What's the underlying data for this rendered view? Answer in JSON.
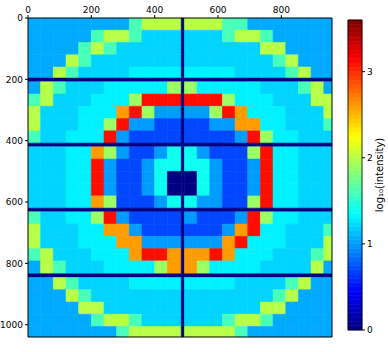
{
  "chart_data": {
    "type": "heatmap",
    "xlim": [
      0,
      960
    ],
    "ylim": [
      1040,
      0
    ],
    "xticks": [
      0,
      200,
      400,
      600,
      800
    ],
    "yticks": [
      0,
      200,
      400,
      600,
      800,
      1000
    ],
    "x_edges": [
      0,
      40,
      80,
      120,
      160,
      200,
      240,
      280,
      320,
      360,
      400,
      440,
      484,
      494,
      534,
      574,
      614,
      654,
      694,
      734,
      774,
      814,
      854,
      894,
      934,
      960
    ],
    "y_edges": [
      0,
      40,
      80,
      120,
      160,
      196,
      208,
      248,
      288,
      328,
      368,
      408,
      420,
      460,
      500,
      540,
      580,
      620,
      632,
      672,
      712,
      752,
      792,
      834,
      846,
      886,
      926,
      966,
      1006,
      1040
    ],
    "cells": [
      [
        1.05,
        1.05,
        1.05,
        1.05,
        1.05,
        1.05,
        1.05,
        1.05,
        1.6,
        2.0,
        2.0,
        2.0,
        0,
        2.0,
        2.0,
        2.0,
        1.6,
        1.6,
        1.05,
        1.05,
        1.05,
        1.05,
        1.05,
        1.05,
        1.05
      ],
      [
        1.05,
        1.05,
        1.05,
        1.05,
        1.05,
        1.6,
        2.0,
        2.0,
        1.6,
        1.2,
        1.2,
        1.2,
        0,
        1.2,
        1.2,
        1.2,
        1.6,
        2.0,
        2.0,
        1.6,
        1.05,
        1.05,
        1.05,
        1.05,
        1.05
      ],
      [
        1.05,
        1.05,
        1.05,
        1.05,
        1.6,
        2.0,
        1.6,
        1.2,
        1.2,
        1.2,
        1.2,
        1.2,
        0,
        1.2,
        1.2,
        1.2,
        1.2,
        1.2,
        1.2,
        2.0,
        2.0,
        1.05,
        1.05,
        1.05,
        1.05
      ],
      [
        1.05,
        1.05,
        1.05,
        2.0,
        1.6,
        1.2,
        1.2,
        1.2,
        1.2,
        1.2,
        1.2,
        1.2,
        0,
        1.2,
        1.2,
        1.2,
        1.2,
        1.2,
        1.2,
        1.2,
        1.6,
        2.0,
        1.05,
        1.05,
        1.05
      ],
      [
        1.05,
        1.05,
        2.0,
        1.6,
        1.2,
        1.2,
        1.2,
        1.2,
        1.3,
        1.3,
        1.3,
        1.3,
        0,
        1.3,
        1.3,
        1.3,
        1.3,
        1.2,
        1.2,
        1.2,
        1.2,
        1.6,
        2.0,
        1.05,
        1.05
      ],
      [
        0,
        0,
        0,
        0,
        0,
        0,
        0,
        0,
        0,
        0,
        0,
        0,
        0,
        0,
        0,
        0,
        0,
        0,
        0,
        0,
        0,
        0,
        0,
        0,
        0
      ],
      [
        1.05,
        2.0,
        1.6,
        1.2,
        1.2,
        1.2,
        1.3,
        1.3,
        1.3,
        1.3,
        1.3,
        1.9,
        0,
        1.9,
        1.3,
        1.3,
        1.3,
        1.3,
        1.3,
        1.2,
        1.2,
        1.2,
        1.6,
        2.0,
        1.05
      ],
      [
        1.6,
        2.0,
        1.2,
        1.2,
        1.2,
        1.3,
        1.3,
        1.3,
        1.9,
        3.1,
        3.1,
        3.1,
        0,
        3.1,
        3.1,
        3.1,
        1.9,
        1.3,
        1.3,
        1.3,
        1.2,
        1.2,
        1.2,
        2.0,
        2.0
      ],
      [
        2.0,
        1.2,
        1.2,
        1.2,
        1.3,
        1.3,
        1.3,
        2.6,
        3.1,
        1.9,
        1.0,
        1.0,
        0,
        1.0,
        1.0,
        1.9,
        3.1,
        2.6,
        1.3,
        1.3,
        1.3,
        1.2,
        1.2,
        1.2,
        2.0
      ],
      [
        2.0,
        1.2,
        1.2,
        1.2,
        1.3,
        1.3,
        1.9,
        3.1,
        1.0,
        1.0,
        0.7,
        0.7,
        0,
        0.7,
        0.7,
        1.0,
        1.0,
        2.6,
        2.6,
        1.3,
        1.3,
        1.2,
        1.2,
        1.2,
        1.6
      ],
      [
        1.6,
        1.2,
        1.2,
        1.3,
        1.3,
        1.3,
        3.1,
        1.0,
        0.7,
        0.7,
        0.7,
        0.7,
        0,
        0.7,
        0.7,
        0.7,
        0.7,
        1.0,
        3.1,
        1.9,
        1.3,
        1.3,
        1.2,
        1.2,
        1.2
      ],
      [
        0,
        0,
        0,
        0,
        0,
        0,
        0,
        0,
        0,
        0,
        0,
        0,
        0,
        0,
        0,
        0,
        0,
        0,
        0,
        0,
        0,
        0,
        0,
        0,
        0
      ],
      [
        1.2,
        1.2,
        1.2,
        1.3,
        1.3,
        2.6,
        1.9,
        1.0,
        0.7,
        0.7,
        1.0,
        1.4,
        0,
        1.4,
        1.0,
        0.7,
        0.7,
        0.7,
        1.9,
        3.1,
        1.3,
        1.3,
        1.2,
        1.2,
        1.2
      ],
      [
        1.2,
        1.2,
        1.2,
        1.3,
        1.3,
        3.1,
        1.0,
        0.7,
        0.7,
        1.0,
        1.4,
        1.4,
        0,
        1.4,
        1.4,
        1.0,
        0.7,
        0.7,
        1.0,
        3.1,
        1.3,
        1.3,
        1.2,
        1.2,
        1.2
      ],
      [
        1.2,
        1.2,
        1.2,
        1.3,
        1.3,
        3.1,
        1.0,
        0.7,
        0.7,
        1.0,
        1.4,
        0,
        0,
        0,
        1.4,
        1.0,
        0.7,
        0.7,
        1.0,
        3.1,
        1.3,
        1.3,
        1.2,
        1.2,
        1.2
      ],
      [
        1.2,
        1.2,
        1.2,
        1.3,
        1.3,
        3.1,
        1.0,
        0.7,
        0.7,
        1.0,
        1.4,
        0,
        0,
        0,
        1.4,
        1.0,
        0.7,
        0.7,
        1.0,
        3.1,
        1.3,
        1.3,
        1.2,
        1.2,
        1.2
      ],
      [
        1.2,
        1.2,
        1.2,
        1.3,
        1.3,
        2.6,
        1.9,
        0.7,
        0.7,
        0.7,
        1.0,
        1.4,
        0,
        1.4,
        1.0,
        1.0,
        0.7,
        0.7,
        1.9,
        3.1,
        1.3,
        1.3,
        1.2,
        1.2,
        1.2
      ],
      [
        0,
        0,
        0,
        0,
        0,
        0,
        0,
        0,
        0,
        0,
        0,
        0,
        0,
        0,
        0,
        0,
        0,
        0,
        0,
        0,
        0,
        0,
        0,
        0,
        0
      ],
      [
        1.6,
        1.2,
        1.2,
        1.3,
        1.3,
        1.9,
        3.1,
        1.0,
        0.7,
        0.7,
        0.7,
        0.7,
        0,
        1.0,
        0.7,
        0.7,
        0.7,
        1.0,
        3.1,
        1.9,
        1.3,
        1.3,
        1.2,
        1.2,
        1.2
      ],
      [
        2.0,
        1.2,
        1.2,
        1.2,
        1.3,
        1.3,
        2.6,
        2.6,
        1.0,
        0.7,
        0.7,
        0.7,
        0,
        0.7,
        0.7,
        0.7,
        1.0,
        2.6,
        3.1,
        1.3,
        1.3,
        1.2,
        1.2,
        1.2,
        1.6
      ],
      [
        2.0,
        1.2,
        1.2,
        1.2,
        1.3,
        1.3,
        1.3,
        2.6,
        2.6,
        1.0,
        1.0,
        1.0,
        0,
        1.0,
        1.0,
        1.0,
        2.6,
        3.1,
        1.3,
        1.3,
        1.3,
        1.2,
        1.2,
        1.2,
        2.0
      ],
      [
        1.6,
        2.0,
        1.2,
        1.2,
        1.2,
        1.3,
        1.3,
        1.3,
        2.6,
        3.1,
        3.1,
        2.6,
        0,
        2.6,
        2.6,
        3.1,
        2.6,
        1.3,
        1.3,
        1.3,
        1.2,
        1.2,
        1.2,
        1.6,
        2.0
      ],
      [
        1.05,
        2.0,
        1.6,
        1.2,
        1.2,
        1.2,
        1.3,
        1.3,
        1.3,
        1.3,
        1.9,
        2.6,
        0,
        2.6,
        1.9,
        1.3,
        1.3,
        1.3,
        1.3,
        1.2,
        1.2,
        1.2,
        1.2,
        2.0,
        1.05
      ],
      [
        0,
        0,
        0,
        0,
        0,
        0,
        0,
        0,
        0,
        0,
        0,
        0,
        0,
        0,
        0,
        0,
        0,
        0,
        0,
        0,
        0,
        0,
        0,
        0,
        0
      ],
      [
        1.05,
        1.05,
        2.0,
        1.6,
        1.2,
        1.2,
        1.2,
        1.2,
        1.3,
        1.3,
        1.3,
        1.3,
        0,
        1.3,
        1.3,
        1.3,
        1.3,
        1.2,
        1.2,
        1.2,
        1.2,
        1.6,
        2.0,
        1.05,
        1.05
      ],
      [
        1.05,
        1.05,
        1.05,
        2.0,
        1.6,
        1.2,
        1.2,
        1.2,
        1.2,
        1.2,
        1.2,
        1.2,
        0,
        1.2,
        1.2,
        1.2,
        1.2,
        1.2,
        1.2,
        1.2,
        1.6,
        2.0,
        1.05,
        1.05,
        1.05
      ],
      [
        1.05,
        1.05,
        1.05,
        1.05,
        2.0,
        2.0,
        1.2,
        1.2,
        1.2,
        1.2,
        1.2,
        1.2,
        0,
        1.2,
        1.2,
        1.2,
        1.2,
        1.2,
        1.2,
        2.0,
        2.0,
        1.05,
        1.05,
        1.05,
        1.05
      ],
      [
        1.05,
        1.05,
        1.05,
        1.05,
        1.05,
        1.6,
        2.0,
        2.0,
        1.6,
        1.2,
        1.2,
        1.2,
        0,
        1.2,
        1.2,
        1.2,
        1.6,
        2.0,
        2.0,
        1.6,
        1.05,
        1.05,
        1.05,
        1.05,
        1.05
      ],
      [
        1.05,
        1.05,
        1.05,
        1.05,
        1.05,
        1.05,
        1.05,
        1.6,
        2.0,
        2.0,
        2.0,
        2.0,
        0,
        2.0,
        2.0,
        2.0,
        2.0,
        1.6,
        1.05,
        1.05,
        1.05,
        1.05,
        1.05,
        1.05,
        1.05
      ]
    ],
    "colorbar": {
      "label": "log₁₀(intensity)",
      "range": [
        0,
        3.6
      ],
      "ticks": [
        0,
        1,
        2,
        3
      ]
    }
  }
}
